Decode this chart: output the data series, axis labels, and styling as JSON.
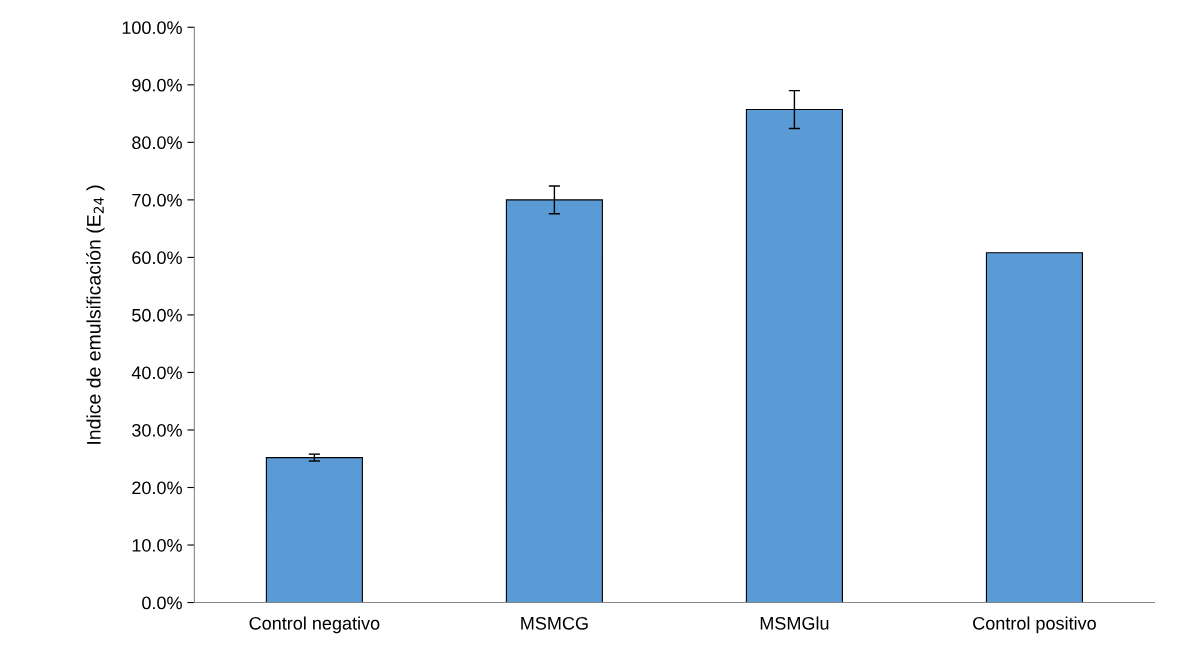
{
  "chart_data": {
    "type": "bar",
    "ylabel": "Indice de emulsificación (E$_{24}$ )",
    "categories": [
      "Control negativo",
      "MSMCG",
      "MSMGlu",
      "Control positivo"
    ],
    "values": [
      25.2,
      70.0,
      85.7,
      60.8
    ],
    "errors": [
      0.6,
      2.4,
      3.3,
      null
    ],
    "color": "#5b9bd5",
    "ylim": [
      0,
      100
    ],
    "yticks": [
      {
        "value": 0,
        "label": "0.0%"
      },
      {
        "value": 10,
        "label": "10.0%"
      },
      {
        "value": 20,
        "label": "20.0%"
      },
      {
        "value": 30,
        "label": "30.0%"
      },
      {
        "value": 40,
        "label": "40.0%"
      },
      {
        "value": 50,
        "label": "50.0%"
      },
      {
        "value": 60,
        "label": "60.0%"
      },
      {
        "value": 70,
        "label": "70.0%"
      },
      {
        "value": 80,
        "label": "80.0%"
      },
      {
        "value": 90,
        "label": "90.0%"
      },
      {
        "value": 100,
        "label": "100.0%"
      }
    ],
    "grid": false
  }
}
